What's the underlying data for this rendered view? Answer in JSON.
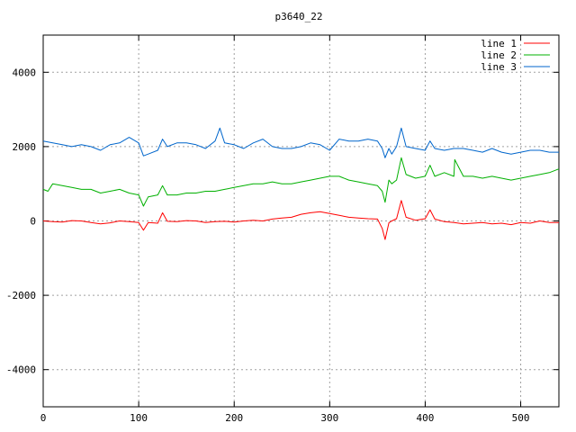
{
  "chart_data": {
    "type": "line",
    "title": "p3640_22",
    "xlabel": "",
    "ylabel": "",
    "xlim": [
      0,
      540
    ],
    "ylim": [
      -5000,
      5000
    ],
    "xticks": [
      0,
      100,
      200,
      300,
      400,
      500
    ],
    "yticks": [
      -4000,
      -2000,
      0,
      2000,
      4000
    ],
    "grid": true,
    "legend_position": "top-right",
    "series": [
      {
        "name": "line 1",
        "color": "#ff0000",
        "x": [
          0,
          10,
          20,
          30,
          40,
          50,
          60,
          70,
          80,
          90,
          100,
          105,
          110,
          120,
          125,
          130,
          140,
          150,
          160,
          170,
          180,
          190,
          200,
          210,
          220,
          230,
          240,
          250,
          260,
          270,
          280,
          290,
          300,
          310,
          320,
          330,
          340,
          350,
          355,
          358,
          362,
          365,
          370,
          375,
          380,
          390,
          400,
          405,
          410,
          420,
          430,
          440,
          450,
          460,
          470,
          480,
          490,
          500,
          510,
          520,
          530,
          540
        ],
        "y": [
          0,
          -20,
          -30,
          10,
          0,
          -40,
          -80,
          -50,
          0,
          -20,
          -40,
          -250,
          -40,
          -60,
          220,
          -10,
          -20,
          10,
          0,
          -40,
          -20,
          -10,
          -30,
          0,
          20,
          0,
          50,
          80,
          100,
          180,
          220,
          250,
          200,
          150,
          100,
          80,
          60,
          50,
          -200,
          -500,
          -50,
          0,
          60,
          550,
          100,
          20,
          60,
          300,
          50,
          -20,
          -40,
          -80,
          -60,
          -40,
          -80,
          -60,
          -100,
          -40,
          -60,
          0,
          -40,
          -40
        ]
      },
      {
        "name": "line 2",
        "color": "#00b000",
        "x": [
          0,
          5,
          10,
          20,
          30,
          40,
          50,
          60,
          70,
          80,
          90,
          100,
          105,
          110,
          120,
          125,
          130,
          140,
          150,
          160,
          170,
          180,
          190,
          200,
          210,
          220,
          230,
          240,
          250,
          260,
          270,
          280,
          290,
          300,
          310,
          320,
          330,
          340,
          350,
          355,
          358,
          362,
          365,
          370,
          375,
          380,
          390,
          400,
          405,
          410,
          420,
          430,
          431,
          440,
          450,
          460,
          470,
          480,
          490,
          500,
          510,
          520,
          530,
          540
        ],
        "y": [
          850,
          800,
          1000,
          950,
          900,
          850,
          850,
          750,
          800,
          850,
          750,
          700,
          400,
          650,
          700,
          950,
          700,
          700,
          750,
          750,
          800,
          800,
          850,
          900,
          950,
          1000,
          1000,
          1050,
          1000,
          1000,
          1050,
          1100,
          1150,
          1200,
          1200,
          1100,
          1050,
          1000,
          950,
          800,
          500,
          1100,
          1000,
          1100,
          1700,
          1250,
          1150,
          1200,
          1500,
          1200,
          1300,
          1200,
          1650,
          1200,
          1200,
          1150,
          1200,
          1150,
          1100,
          1150,
          1200,
          1250,
          1300,
          1400
        ]
      },
      {
        "name": "line 3",
        "color": "#0066cc",
        "x": [
          0,
          10,
          20,
          30,
          40,
          50,
          60,
          70,
          80,
          90,
          100,
          105,
          110,
          120,
          125,
          130,
          140,
          150,
          160,
          170,
          180,
          185,
          190,
          200,
          210,
          220,
          230,
          240,
          250,
          260,
          270,
          280,
          290,
          300,
          310,
          320,
          330,
          340,
          350,
          355,
          358,
          362,
          365,
          370,
          375,
          380,
          390,
          400,
          405,
          410,
          420,
          430,
          440,
          450,
          460,
          470,
          480,
          490,
          500,
          510,
          520,
          530,
          540
        ],
        "y": [
          2150,
          2100,
          2050,
          2000,
          2050,
          2000,
          1900,
          2050,
          2100,
          2250,
          2100,
          1750,
          1800,
          1900,
          2200,
          2000,
          2100,
          2100,
          2050,
          1950,
          2150,
          2500,
          2100,
          2050,
          1950,
          2100,
          2200,
          2000,
          1950,
          1950,
          2000,
          2100,
          2050,
          1900,
          2200,
          2150,
          2150,
          2200,
          2150,
          1950,
          1700,
          1950,
          1800,
          2000,
          2500,
          2000,
          1950,
          1900,
          2150,
          1950,
          1900,
          1950,
          1950,
          1900,
          1850,
          1950,
          1850,
          1800,
          1850,
          1900,
          1900,
          1850,
          1850
        ]
      }
    ]
  }
}
